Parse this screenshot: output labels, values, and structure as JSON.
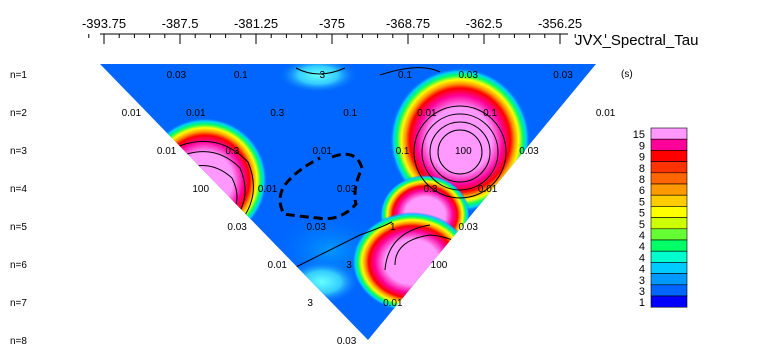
{
  "chart_data": {
    "type": "heatmap",
    "title": "JVX_Spectral_Tau",
    "unit": "(s)",
    "x_tick_labels": [
      "-393.75",
      "-387.5",
      "-381.25",
      "-375",
      "-368.75",
      "-362.5",
      "-356.25"
    ],
    "x_ticks": [
      -393.75,
      -387.5,
      -381.25,
      -375,
      -368.75,
      -362.5,
      -356.25
    ],
    "xlim": [
      -396,
      -350
    ],
    "rows": [
      "n=1",
      "n=2",
      "n=3",
      "n=4",
      "n=5",
      "n=6",
      "n=7",
      "n=8"
    ],
    "colorbar_labels": [
      "15",
      "9",
      "9",
      "8",
      "8",
      "6",
      "5",
      "5",
      "5",
      "4",
      "4",
      "4",
      "4",
      "3",
      "3",
      "1"
    ],
    "colorbar_colors": [
      "#ff99ff",
      "#ff0099",
      "#ff0000",
      "#ff3300",
      "#ff6600",
      "#ff9900",
      "#ffcc00",
      "#ffff00",
      "#ccff00",
      "#66ff33",
      "#00ff66",
      "#00ffcc",
      "#00ccff",
      "#0099ff",
      "#0066ff",
      "#0000ff"
    ],
    "background_color": "#0066ff",
    "contour_labels": [
      {
        "text": "0.03",
        "x": -387.8,
        "n": 1.0
      },
      {
        "text": "0.1",
        "x": -382.5,
        "n": 1.0
      },
      {
        "text": "3",
        "x": -375.8,
        "n": 1.0
      },
      {
        "text": "0.1",
        "x": -369.0,
        "n": 1.0
      },
      {
        "text": "0.03",
        "x": -363.8,
        "n": 1.0
      },
      {
        "text": "0.03",
        "x": -356.0,
        "n": 1.0
      },
      {
        "text": "0.01",
        "x": -391.5,
        "n": 2.0
      },
      {
        "text": "0.01",
        "x": -386.2,
        "n": 2.0
      },
      {
        "text": "0.3",
        "x": -379.5,
        "n": 2.0
      },
      {
        "text": "0.1",
        "x": -373.5,
        "n": 2.0
      },
      {
        "text": "0.01",
        "x": -367.2,
        "n": 2.0
      },
      {
        "text": "0.1",
        "x": -362.0,
        "n": 2.0
      },
      {
        "text": "0.01",
        "x": -352.5,
        "n": 2.0
      },
      {
        "text": "0.01",
        "x": -388.6,
        "n": 3.0
      },
      {
        "text": "0.3",
        "x": -383.2,
        "n": 3.0
      },
      {
        "text": "0.01",
        "x": -375.8,
        "n": 3.0
      },
      {
        "text": "0.1",
        "x": -369.2,
        "n": 3.0
      },
      {
        "text": "100",
        "x": -364.2,
        "n": 3.0
      },
      {
        "text": "0.03",
        "x": -358.8,
        "n": 3.0
      },
      {
        "text": "100",
        "x": -385.8,
        "n": 4.0
      },
      {
        "text": "0.01",
        "x": -380.3,
        "n": 4.0
      },
      {
        "text": "0.03",
        "x": -373.8,
        "n": 4.0
      },
      {
        "text": "0.3",
        "x": -366.9,
        "n": 4.0
      },
      {
        "text": "0.01",
        "x": -362.2,
        "n": 4.0
      },
      {
        "text": "0.03",
        "x": -382.8,
        "n": 5.0
      },
      {
        "text": "0.03",
        "x": -376.3,
        "n": 5.0
      },
      {
        "text": "1",
        "x": -370.0,
        "n": 5.0
      },
      {
        "text": "0.03",
        "x": -363.8,
        "n": 5.0
      },
      {
        "text": "0.01",
        "x": -379.5,
        "n": 6.0
      },
      {
        "text": "3",
        "x": -373.6,
        "n": 6.0
      },
      {
        "text": "100",
        "x": -366.2,
        "n": 6.0
      },
      {
        "text": "3",
        "x": -376.8,
        "n": 7.0
      },
      {
        "text": "0.01",
        "x": -370.0,
        "n": 7.0
      },
      {
        "text": "0.03",
        "x": -373.8,
        "n": 8.0
      }
    ]
  }
}
